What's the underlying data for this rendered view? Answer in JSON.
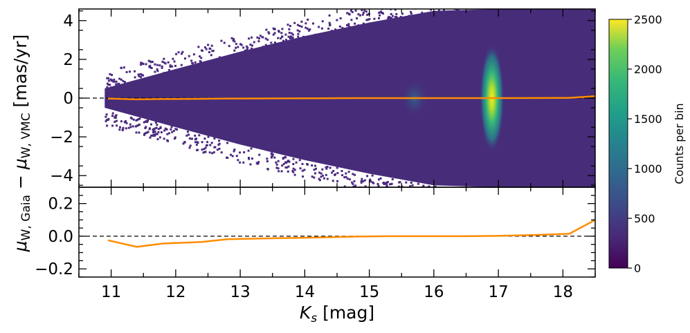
{
  "chart_data": [
    {
      "type": "heatmap",
      "panel": "top",
      "xlabel_main": "K",
      "xlabel_sub": "s",
      "xlabel_unit": " [mag]",
      "ylabel_main": "μ",
      "ylabel_sub": "W, VMC",
      "ylabel_unit": " [mas/yr]",
      "ylabel_prefix_main": "μ",
      "ylabel_prefix_sub": "W, Gaia",
      "ylabel_joiner": " − ",
      "xlim": [
        10.5,
        18.5
      ],
      "ylim": [
        -4.6,
        4.6
      ],
      "yticks": [
        -4,
        -2,
        0,
        2,
        4
      ],
      "ytick_labels": [
        "−4",
        "−2",
        "0",
        "2",
        "4"
      ],
      "colormap": "viridis",
      "density_features": [
        {
          "feature": "spread envelope",
          "x": [
            10.9,
            12,
            13,
            14,
            15,
            16,
            17,
            18,
            18.5
          ],
          "y_half_width": [
            0.5,
            1.5,
            2.4,
            3.2,
            3.9,
            4.5,
            4.6,
            4.6,
            4.6
          ]
        },
        {
          "feature": "red clump peak",
          "x": 16.9,
          "y": 0.0,
          "counts": 2500
        },
        {
          "feature": "secondary concentration",
          "x": 15.7,
          "y": 0.0,
          "counts": 700
        }
      ],
      "series": [
        {
          "x": [
            10.95,
            11.4,
            11.8,
            12.4,
            12.8,
            13.6,
            14.2,
            14.8,
            15.3,
            16.0,
            16.5,
            17.0,
            17.6,
            18.1,
            18.5
          ],
          "y": [
            -0.02,
            -0.06,
            -0.045,
            -0.035,
            -0.02,
            -0.015,
            -0.01,
            0.0,
            0.0,
            0.0,
            0.0,
            0.0,
            0.005,
            0.015,
            0.1
          ],
          "color": "#ff8c00"
        }
      ]
    },
    {
      "type": "line",
      "panel": "bottom",
      "xlim": [
        10.5,
        18.5
      ],
      "ylim": [
        -0.25,
        0.3
      ],
      "xticks": [
        11,
        12,
        13,
        14,
        15,
        16,
        17,
        18
      ],
      "xtick_labels": [
        "11",
        "12",
        "13",
        "14",
        "15",
        "16",
        "17",
        "18"
      ],
      "yticks": [
        -0.2,
        0.0,
        0.2
      ],
      "ytick_labels": [
        "−0.2",
        "0.0",
        "0.2"
      ],
      "reference_line": {
        "y": 0.0,
        "style": "dashed",
        "color": "#000000"
      },
      "series": [
        {
          "x": [
            10.95,
            11.4,
            11.8,
            12.4,
            12.8,
            13.6,
            14.2,
            14.8,
            15.3,
            16.0,
            16.5,
            17.0,
            17.6,
            18.1,
            18.5
          ],
          "y": [
            -0.025,
            -0.065,
            -0.045,
            -0.035,
            -0.018,
            -0.012,
            -0.008,
            -0.002,
            0.0,
            0.0,
            0.0,
            0.002,
            0.008,
            0.015,
            0.1
          ],
          "color": "#ff8c00"
        }
      ]
    },
    {
      "type": "colorbar",
      "label": "Counts per bin",
      "range": [
        0,
        2500
      ],
      "ticks": [
        0,
        500,
        1000,
        1500,
        2000,
        2500
      ],
      "tick_labels": [
        "0",
        "500",
        "1000",
        "1500",
        "2000",
        "2500"
      ],
      "colormap": "viridis"
    }
  ]
}
